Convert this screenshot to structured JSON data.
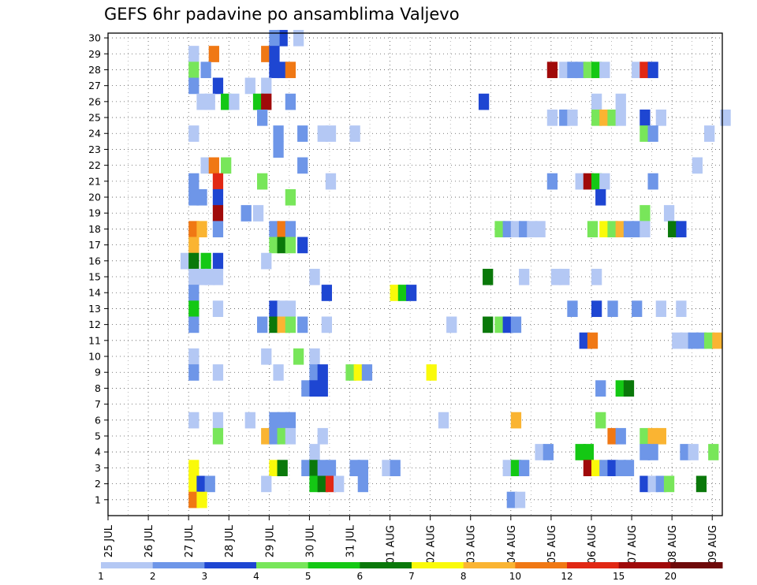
{
  "chart_data": {
    "type": "heatmap",
    "title": "GEFS 6hr padavine po ansamblima Valjevo",
    "xlabel": "",
    "ylabel": "",
    "x_tick_labels": [
      "25 JUL",
      "26 JUL",
      "27 JUL",
      "28 JUL",
      "29 JUL",
      "30 JUL",
      "31 JUL",
      "01 AUG",
      "02 AUG",
      "03 AUG",
      "04 AUG",
      "05 AUG",
      "06 AUG",
      "07 AUG",
      "08 AUG",
      "09 AUG"
    ],
    "y_tick_labels": [
      "1",
      "2",
      "3",
      "4",
      "5",
      "6",
      "7",
      "8",
      "9",
      "10",
      "11",
      "12",
      "13",
      "14",
      "15",
      "16",
      "17",
      "18",
      "19",
      "20",
      "21",
      "22",
      "23",
      "24",
      "25",
      "26",
      "27",
      "28",
      "29",
      "30"
    ],
    "xlim_days": [
      0,
      15.25
    ],
    "ylim": [
      0,
      30
    ],
    "time_step_hours": 6,
    "grid": "dotted",
    "legend_position": "bottom",
    "legend": {
      "labels": [
        "1",
        "2",
        "3",
        "4",
        "5",
        "6",
        "7",
        "8",
        "10",
        "12",
        "15",
        "20"
      ],
      "colors": [
        "#b4c8f4",
        "#6e96e8",
        "#1e46d2",
        "#78e65a",
        "#14c814",
        "#0a780a",
        "#fafa0a",
        "#fab432",
        "#f07814",
        "#e12814",
        "#a00a0a",
        "#6e0a0a"
      ]
    },
    "cells": [
      [
        30,
        4.6,
        0
      ],
      [
        30,
        4.2,
        2
      ],
      [
        30,
        4.0,
        1
      ],
      [
        29,
        2.0,
        0
      ],
      [
        29,
        2.5,
        8
      ],
      [
        29,
        3.8,
        8
      ],
      [
        29,
        4.0,
        2
      ],
      [
        28,
        2.0,
        3
      ],
      [
        28,
        2.3,
        1
      ],
      [
        28,
        4.0,
        2
      ],
      [
        28,
        4.2,
        2
      ],
      [
        28,
        4.4,
        8
      ],
      [
        28,
        10.9,
        10
      ],
      [
        28,
        11.2,
        0
      ],
      [
        28,
        11.4,
        1
      ],
      [
        28,
        11.6,
        1
      ],
      [
        28,
        11.8,
        3
      ],
      [
        28,
        12.0,
        4
      ],
      [
        28,
        12.2,
        0
      ],
      [
        28,
        13.0,
        0
      ],
      [
        28,
        13.2,
        9
      ],
      [
        28,
        13.4,
        2
      ],
      [
        27,
        2.0,
        1
      ],
      [
        27,
        2.6,
        2
      ],
      [
        27,
        3.4,
        0
      ],
      [
        27,
        3.8,
        0
      ],
      [
        26,
        2.2,
        0
      ],
      [
        26,
        2.4,
        0
      ],
      [
        26,
        2.8,
        4
      ],
      [
        26,
        3.0,
        0
      ],
      [
        26,
        3.6,
        4
      ],
      [
        26,
        3.8,
        10
      ],
      [
        26,
        4.4,
        1
      ],
      [
        26,
        9.2,
        2
      ],
      [
        26,
        12.0,
        0
      ],
      [
        26,
        12.6,
        0
      ],
      [
        25,
        3.7,
        1
      ],
      [
        25,
        10.9,
        0
      ],
      [
        25,
        11.2,
        1
      ],
      [
        25,
        11.4,
        0
      ],
      [
        25,
        12.0,
        3
      ],
      [
        25,
        12.2,
        7
      ],
      [
        25,
        12.4,
        3
      ],
      [
        25,
        12.6,
        0
      ],
      [
        25,
        13.2,
        2
      ],
      [
        25,
        13.6,
        0
      ],
      [
        25,
        15.2,
        0
      ],
      [
        24,
        2.0,
        0
      ],
      [
        24,
        4.1,
        1
      ],
      [
        24,
        4.7,
        1
      ],
      [
        24,
        5.2,
        0
      ],
      [
        24,
        5.4,
        0
      ],
      [
        24,
        6.0,
        0
      ],
      [
        24,
        13.2,
        3
      ],
      [
        24,
        13.4,
        1
      ],
      [
        24,
        14.8,
        0
      ],
      [
        23,
        4.1,
        1
      ],
      [
        22,
        2.3,
        0
      ],
      [
        22,
        2.5,
        8
      ],
      [
        22,
        2.8,
        3
      ],
      [
        22,
        4.7,
        1
      ],
      [
        22,
        14.5,
        0
      ],
      [
        21,
        2.0,
        1
      ],
      [
        21,
        2.6,
        9
      ],
      [
        21,
        3.7,
        3
      ],
      [
        21,
        5.4,
        0
      ],
      [
        21,
        10.9,
        1
      ],
      [
        21,
        11.6,
        0
      ],
      [
        21,
        11.8,
        10
      ],
      [
        21,
        12.0,
        4
      ],
      [
        21,
        12.2,
        0
      ],
      [
        21,
        13.4,
        1
      ],
      [
        20,
        2.0,
        1
      ],
      [
        20,
        2.2,
        1
      ],
      [
        20,
        2.6,
        2
      ],
      [
        20,
        4.4,
        3
      ],
      [
        20,
        12.1,
        2
      ],
      [
        19,
        2.6,
        10
      ],
      [
        19,
        3.3,
        1
      ],
      [
        19,
        3.6,
        0
      ],
      [
        19,
        13.2,
        3
      ],
      [
        19,
        13.8,
        0
      ],
      [
        18,
        2.0,
        8
      ],
      [
        18,
        2.2,
        7
      ],
      [
        18,
        2.6,
        1
      ],
      [
        18,
        4.0,
        1
      ],
      [
        18,
        4.2,
        8
      ],
      [
        18,
        4.4,
        1
      ],
      [
        18,
        9.6,
        3
      ],
      [
        18,
        9.8,
        1
      ],
      [
        18,
        10.0,
        0
      ],
      [
        18,
        10.2,
        1
      ],
      [
        18,
        10.4,
        0
      ],
      [
        18,
        10.6,
        0
      ],
      [
        18,
        11.9,
        3
      ],
      [
        18,
        12.2,
        6
      ],
      [
        18,
        12.4,
        3
      ],
      [
        18,
        12.6,
        7
      ],
      [
        18,
        12.8,
        1
      ],
      [
        18,
        13.0,
        1
      ],
      [
        18,
        13.2,
        0
      ],
      [
        18,
        13.9,
        5
      ],
      [
        18,
        14.1,
        2
      ],
      [
        17,
        2.0,
        7
      ],
      [
        17,
        4.0,
        3
      ],
      [
        17,
        4.2,
        5
      ],
      [
        17,
        4.4,
        3
      ],
      [
        17,
        4.7,
        2
      ],
      [
        16,
        1.8,
        0
      ],
      [
        16,
        2.0,
        5
      ],
      [
        16,
        2.3,
        4
      ],
      [
        16,
        2.6,
        2
      ],
      [
        16,
        3.8,
        0
      ],
      [
        15,
        2.0,
        0
      ],
      [
        15,
        2.2,
        0
      ],
      [
        15,
        2.4,
        0
      ],
      [
        15,
        2.6,
        0
      ],
      [
        15,
        5.0,
        0
      ],
      [
        15,
        9.3,
        5
      ],
      [
        15,
        10.2,
        0
      ],
      [
        15,
        11.0,
        0
      ],
      [
        15,
        11.2,
        0
      ],
      [
        15,
        12.0,
        0
      ],
      [
        14,
        2.0,
        1
      ],
      [
        14,
        5.3,
        2
      ],
      [
        14,
        7.0,
        6
      ],
      [
        14,
        7.2,
        4
      ],
      [
        14,
        7.4,
        2
      ],
      [
        13,
        2.0,
        4
      ],
      [
        13,
        2.6,
        0
      ],
      [
        13,
        4.0,
        2
      ],
      [
        13,
        4.2,
        0
      ],
      [
        13,
        4.4,
        0
      ],
      [
        13,
        11.4,
        1
      ],
      [
        13,
        12.0,
        2
      ],
      [
        13,
        12.4,
        1
      ],
      [
        13,
        13.0,
        1
      ],
      [
        13,
        13.6,
        0
      ],
      [
        13,
        14.1,
        0
      ],
      [
        12,
        2.0,
        1
      ],
      [
        12,
        3.7,
        1
      ],
      [
        12,
        4.0,
        5
      ],
      [
        12,
        4.2,
        7
      ],
      [
        12,
        4.4,
        3
      ],
      [
        12,
        4.7,
        1
      ],
      [
        12,
        5.3,
        0
      ],
      [
        12,
        8.4,
        0
      ],
      [
        12,
        9.3,
        5
      ],
      [
        12,
        9.6,
        3
      ],
      [
        12,
        9.8,
        2
      ],
      [
        12,
        10.0,
        1
      ],
      [
        11,
        11.7,
        2
      ],
      [
        11,
        11.9,
        8
      ],
      [
        11,
        14.0,
        0
      ],
      [
        11,
        14.2,
        0
      ],
      [
        11,
        14.4,
        1
      ],
      [
        11,
        14.6,
        1
      ],
      [
        11,
        14.8,
        3
      ],
      [
        11,
        15.0,
        7
      ],
      [
        10,
        2.0,
        0
      ],
      [
        10,
        3.8,
        0
      ],
      [
        10,
        4.6,
        3
      ],
      [
        10,
        5.0,
        0
      ],
      [
        9,
        2.0,
        1
      ],
      [
        9,
        2.6,
        0
      ],
      [
        9,
        4.1,
        0
      ],
      [
        9,
        5.0,
        1
      ],
      [
        9,
        5.2,
        2
      ],
      [
        9,
        5.9,
        3
      ],
      [
        9,
        6.1,
        6
      ],
      [
        9,
        6.3,
        1
      ],
      [
        9,
        7.9,
        6
      ],
      [
        8,
        4.8,
        1
      ],
      [
        8,
        5.0,
        2
      ],
      [
        8,
        5.2,
        2
      ],
      [
        8,
        12.1,
        1
      ],
      [
        8,
        12.6,
        4
      ],
      [
        8,
        12.8,
        5
      ],
      [
        6,
        2.0,
        0
      ],
      [
        6,
        2.6,
        0
      ],
      [
        6,
        3.4,
        0
      ],
      [
        6,
        4.0,
        1
      ],
      [
        6,
        4.2,
        1
      ],
      [
        6,
        4.4,
        1
      ],
      [
        6,
        8.2,
        0
      ],
      [
        6,
        10.0,
        7
      ],
      [
        6,
        12.1,
        3
      ],
      [
        5,
        2.6,
        3
      ],
      [
        5,
        3.8,
        7
      ],
      [
        5,
        4.0,
        1
      ],
      [
        5,
        4.2,
        3
      ],
      [
        5,
        4.4,
        0
      ],
      [
        5,
        12.4,
        8
      ],
      [
        5,
        12.6,
        1
      ],
      [
        5,
        13.2,
        3
      ],
      [
        5,
        13.4,
        7
      ],
      [
        5,
        13.6,
        7
      ],
      [
        4,
        5.0,
        0
      ],
      [
        5,
        5.2,
        0
      ],
      [
        4,
        10.6,
        0
      ],
      [
        4,
        10.8,
        1
      ],
      [
        4,
        11.6,
        4
      ],
      [
        4,
        11.8,
        4
      ],
      [
        4,
        13.2,
        1
      ],
      [
        4,
        13.4,
        1
      ],
      [
        4,
        14.2,
        1
      ],
      [
        4,
        14.4,
        0
      ],
      [
        4,
        14.9,
        3
      ],
      [
        3,
        2.0,
        6
      ],
      [
        3,
        4.0,
        6
      ],
      [
        3,
        4.2,
        5
      ],
      [
        3,
        4.8,
        1
      ],
      [
        3,
        5.0,
        5
      ],
      [
        3,
        5.2,
        1
      ],
      [
        3,
        5.4,
        1
      ],
      [
        3,
        6.0,
        1
      ],
      [
        3,
        6.2,
        1
      ],
      [
        3,
        6.8,
        0
      ],
      [
        3,
        7.0,
        1
      ],
      [
        3,
        9.8,
        0
      ],
      [
        3,
        10.0,
        4
      ],
      [
        3,
        10.2,
        1
      ],
      [
        3,
        11.8,
        10
      ],
      [
        3,
        12.0,
        6
      ],
      [
        3,
        12.2,
        1
      ],
      [
        3,
        12.4,
        2
      ],
      [
        3,
        12.6,
        1
      ],
      [
        3,
        12.8,
        1
      ],
      [
        2,
        2.0,
        6
      ],
      [
        2,
        2.2,
        2
      ],
      [
        2,
        2.4,
        1
      ],
      [
        2,
        3.8,
        0
      ],
      [
        2,
        5.0,
        4
      ],
      [
        2,
        5.2,
        5
      ],
      [
        2,
        5.4,
        9
      ],
      [
        2,
        5.6,
        0
      ],
      [
        2,
        6.2,
        1
      ],
      [
        2,
        13.2,
        2
      ],
      [
        2,
        13.4,
        0
      ],
      [
        2,
        13.6,
        1
      ],
      [
        2,
        13.8,
        3
      ],
      [
        2,
        14.6,
        5
      ],
      [
        1,
        2.0,
        8
      ],
      [
        1,
        2.2,
        6
      ],
      [
        1,
        9.9,
        1
      ],
      [
        1,
        10.1,
        0
      ]
    ]
  }
}
